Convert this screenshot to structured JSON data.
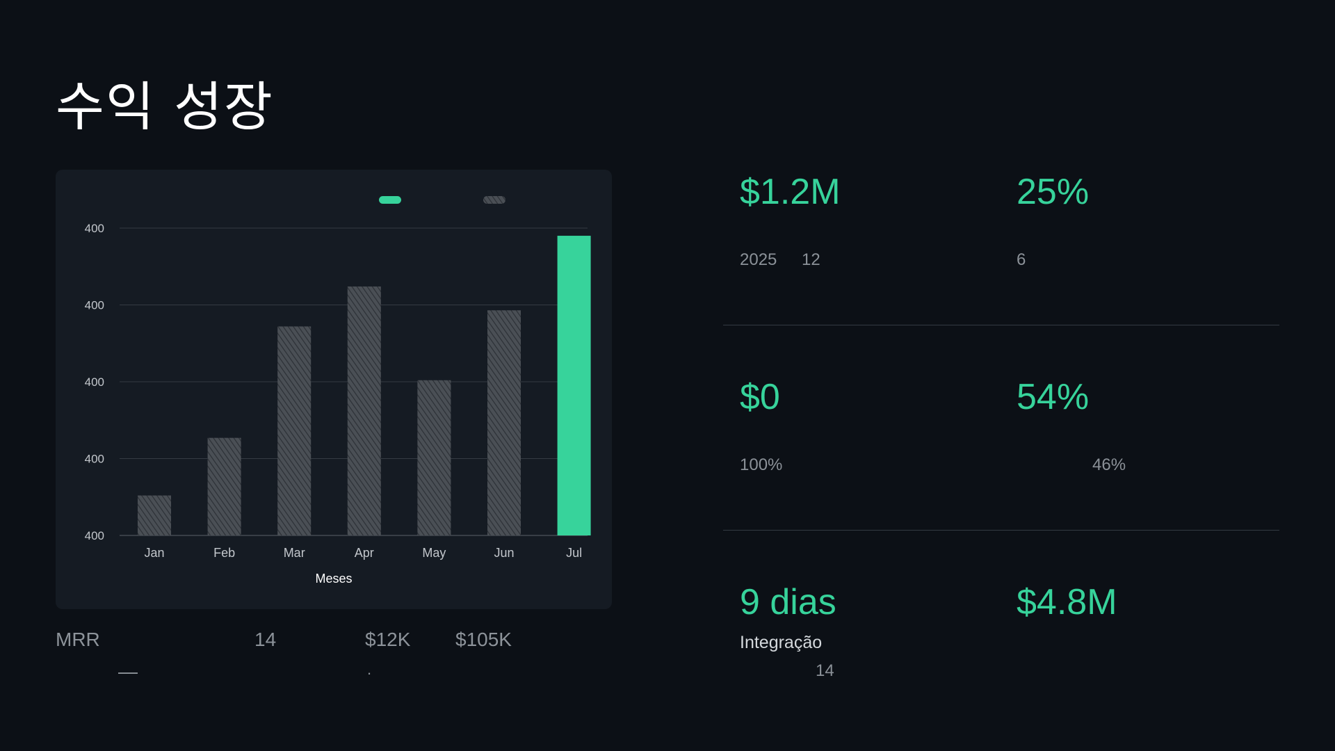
{
  "page": {
    "title": "수익 성장"
  },
  "chart_data": {
    "type": "bar",
    "categories": [
      "Jan",
      "Feb",
      "Mar",
      "Apr",
      "May",
      "Jun",
      "Jul"
    ],
    "values": [
      0.52,
      1.27,
      2.72,
      3.24,
      2.02,
      2.93,
      3.9
    ],
    "highlight_index": 6,
    "ylim": [
      0,
      4
    ],
    "ytick_labels": [
      "400",
      "400",
      "400",
      "400",
      "400"
    ],
    "xlabel": "Meses",
    "ylabel": "",
    "grid": true,
    "legend_position": "top-center",
    "colors": {
      "highlight": "#37d39b",
      "base": "#4a4f55",
      "hatch": "#2c3036"
    }
  },
  "caption": {
    "label": "MRR",
    "value_1": "14",
    "value_2": "$12K",
    "value_3": "$105K",
    "dash": "—",
    "dot": "."
  },
  "metrics": [
    {
      "value": "$1.2M",
      "sub_1": "2025",
      "sub_2": "12"
    },
    {
      "value": "25%",
      "sub_1": "6"
    },
    {
      "value": "$0",
      "sub_1": "100%"
    },
    {
      "value": "54%",
      "sub_1": "46%"
    },
    {
      "value": "9 dias",
      "label": "Integração",
      "sub_1": "14"
    },
    {
      "value": "$4.8M"
    }
  ],
  "colors": {
    "accent": "#37d39b",
    "background": "#0c1016",
    "card": "#151b23"
  }
}
